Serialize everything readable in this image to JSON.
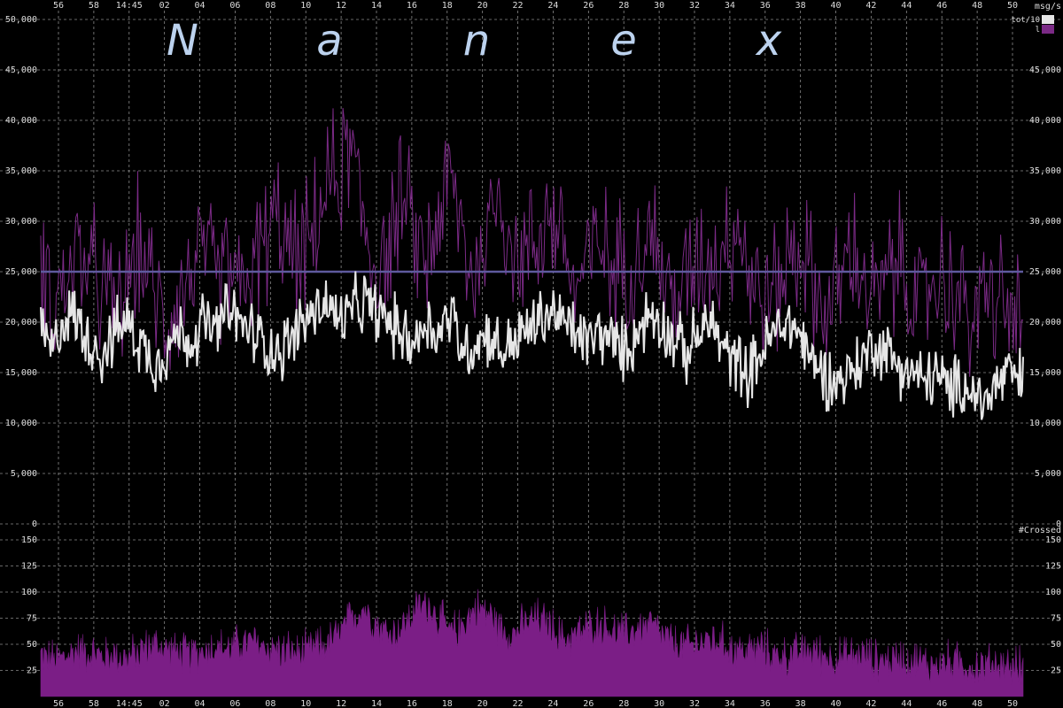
{
  "brand_letters": [
    "N",
    "a",
    "n",
    "e",
    "x"
  ],
  "colors": {
    "background": "#000000",
    "total_series": "#e6e6e6",
    "level1_series": "#7b2a86",
    "threshold_line": "#5e5a9e",
    "crossed_bars": "#7b1e86",
    "grid": "#8a8a8a",
    "brand": "#bcd2ee"
  },
  "chart_data": [
    {
      "type": "line",
      "ylabel": "msg/s",
      "ylim": [
        0,
        50000
      ],
      "y_ticks": [
        "0",
        "5,000",
        "10,000",
        "15,000",
        "20,000",
        "25,000",
        "30,000",
        "35,000",
        "40,000",
        "45,000",
        "50,000"
      ],
      "x_tick_labels": [
        "56",
        "58",
        "14:45",
        "02",
        "04",
        "06",
        "08",
        "10",
        "12",
        "14",
        "16",
        "18",
        "20",
        "22",
        "24",
        "26",
        "28",
        "30",
        "32",
        "34",
        "36",
        "38",
        "40",
        "42",
        "44",
        "46",
        "48",
        "50"
      ],
      "legend": [
        "tot/10",
        "l"
      ],
      "threshold": 25000,
      "grid": true,
      "series": [
        {
          "name": "tot/10",
          "values": [
            19000,
            17000,
            21000,
            20000,
            18000,
            17000,
            19000,
            20000,
            18000,
            16000,
            17000,
            19000,
            18000,
            20000,
            19000,
            21000,
            20000,
            19000,
            18000,
            17000,
            18000,
            20000,
            21000,
            22000,
            20000,
            21000,
            22000,
            21000,
            20000,
            19000,
            18000,
            20000,
            19000,
            21000,
            17000,
            18000,
            19000,
            17000,
            18000,
            19000,
            20000,
            21000,
            20000,
            19000,
            18000,
            19000,
            18000,
            17000,
            19000,
            21000,
            20000,
            18000,
            17000,
            19000,
            20000,
            17000,
            16000,
            15000,
            17000,
            19000,
            20000,
            19000,
            16000,
            15000,
            14000,
            15000,
            16000,
            18000,
            17000,
            16000,
            15000,
            14000,
            15000,
            13000,
            14000,
            13000,
            12000,
            14000,
            15000,
            14000
          ]
        },
        {
          "name": "l",
          "values": [
            26000,
            22000,
            24000,
            27000,
            25000,
            23000,
            21000,
            24000,
            28000,
            23000,
            20000,
            22000,
            25000,
            27000,
            24000,
            26000,
            23000,
            25000,
            28000,
            30000,
            27000,
            26000,
            29000,
            33000,
            35000,
            37000,
            30000,
            25000,
            28000,
            32000,
            29000,
            26000,
            31000,
            34000,
            28000,
            24000,
            30000,
            33000,
            27000,
            26000,
            29000,
            31000,
            28000,
            23000,
            26000,
            28000,
            25000,
            26000,
            27000,
            29000,
            25000,
            22000,
            24000,
            27000,
            26000,
            28000,
            30000,
            25000,
            22000,
            23000,
            26000,
            28000,
            24000,
            21000,
            23000,
            27000,
            25000,
            22000,
            24000,
            26000,
            23000,
            21000,
            25000,
            24000,
            22000,
            20000,
            23000,
            22000,
            21000,
            20000
          ]
        }
      ]
    },
    {
      "type": "bar",
      "ylabel": "#Crossed",
      "ylim": [
        0,
        150
      ],
      "y_ticks": [
        "25",
        "50",
        "75",
        "100",
        "125",
        "150"
      ],
      "x_tick_labels": [
        "56",
        "58",
        "14:45",
        "02",
        "04",
        "06",
        "08",
        "10",
        "12",
        "14",
        "16",
        "18",
        "20",
        "22",
        "24",
        "26",
        "28",
        "30",
        "32",
        "34",
        "36",
        "38",
        "40",
        "42",
        "44",
        "46",
        "48",
        "50"
      ],
      "grid": true,
      "series": [
        {
          "name": "#Crossed",
          "values": [
            40,
            35,
            38,
            45,
            42,
            38,
            40,
            36,
            44,
            50,
            46,
            42,
            40,
            44,
            48,
            45,
            50,
            52,
            48,
            45,
            43,
            40,
            46,
            50,
            60,
            75,
            85,
            70,
            60,
            65,
            80,
            90,
            75,
            60,
            70,
            85,
            80,
            65,
            60,
            70,
            75,
            68,
            55,
            60,
            65,
            70,
            62,
            60,
            65,
            70,
            58,
            50,
            48,
            52,
            55,
            50,
            45,
            44,
            46,
            40,
            38,
            42,
            44,
            40,
            36,
            38,
            40,
            36,
            34,
            38,
            36,
            32,
            30,
            34,
            32,
            28,
            30,
            32,
            28,
            30
          ]
        }
      ]
    }
  ]
}
